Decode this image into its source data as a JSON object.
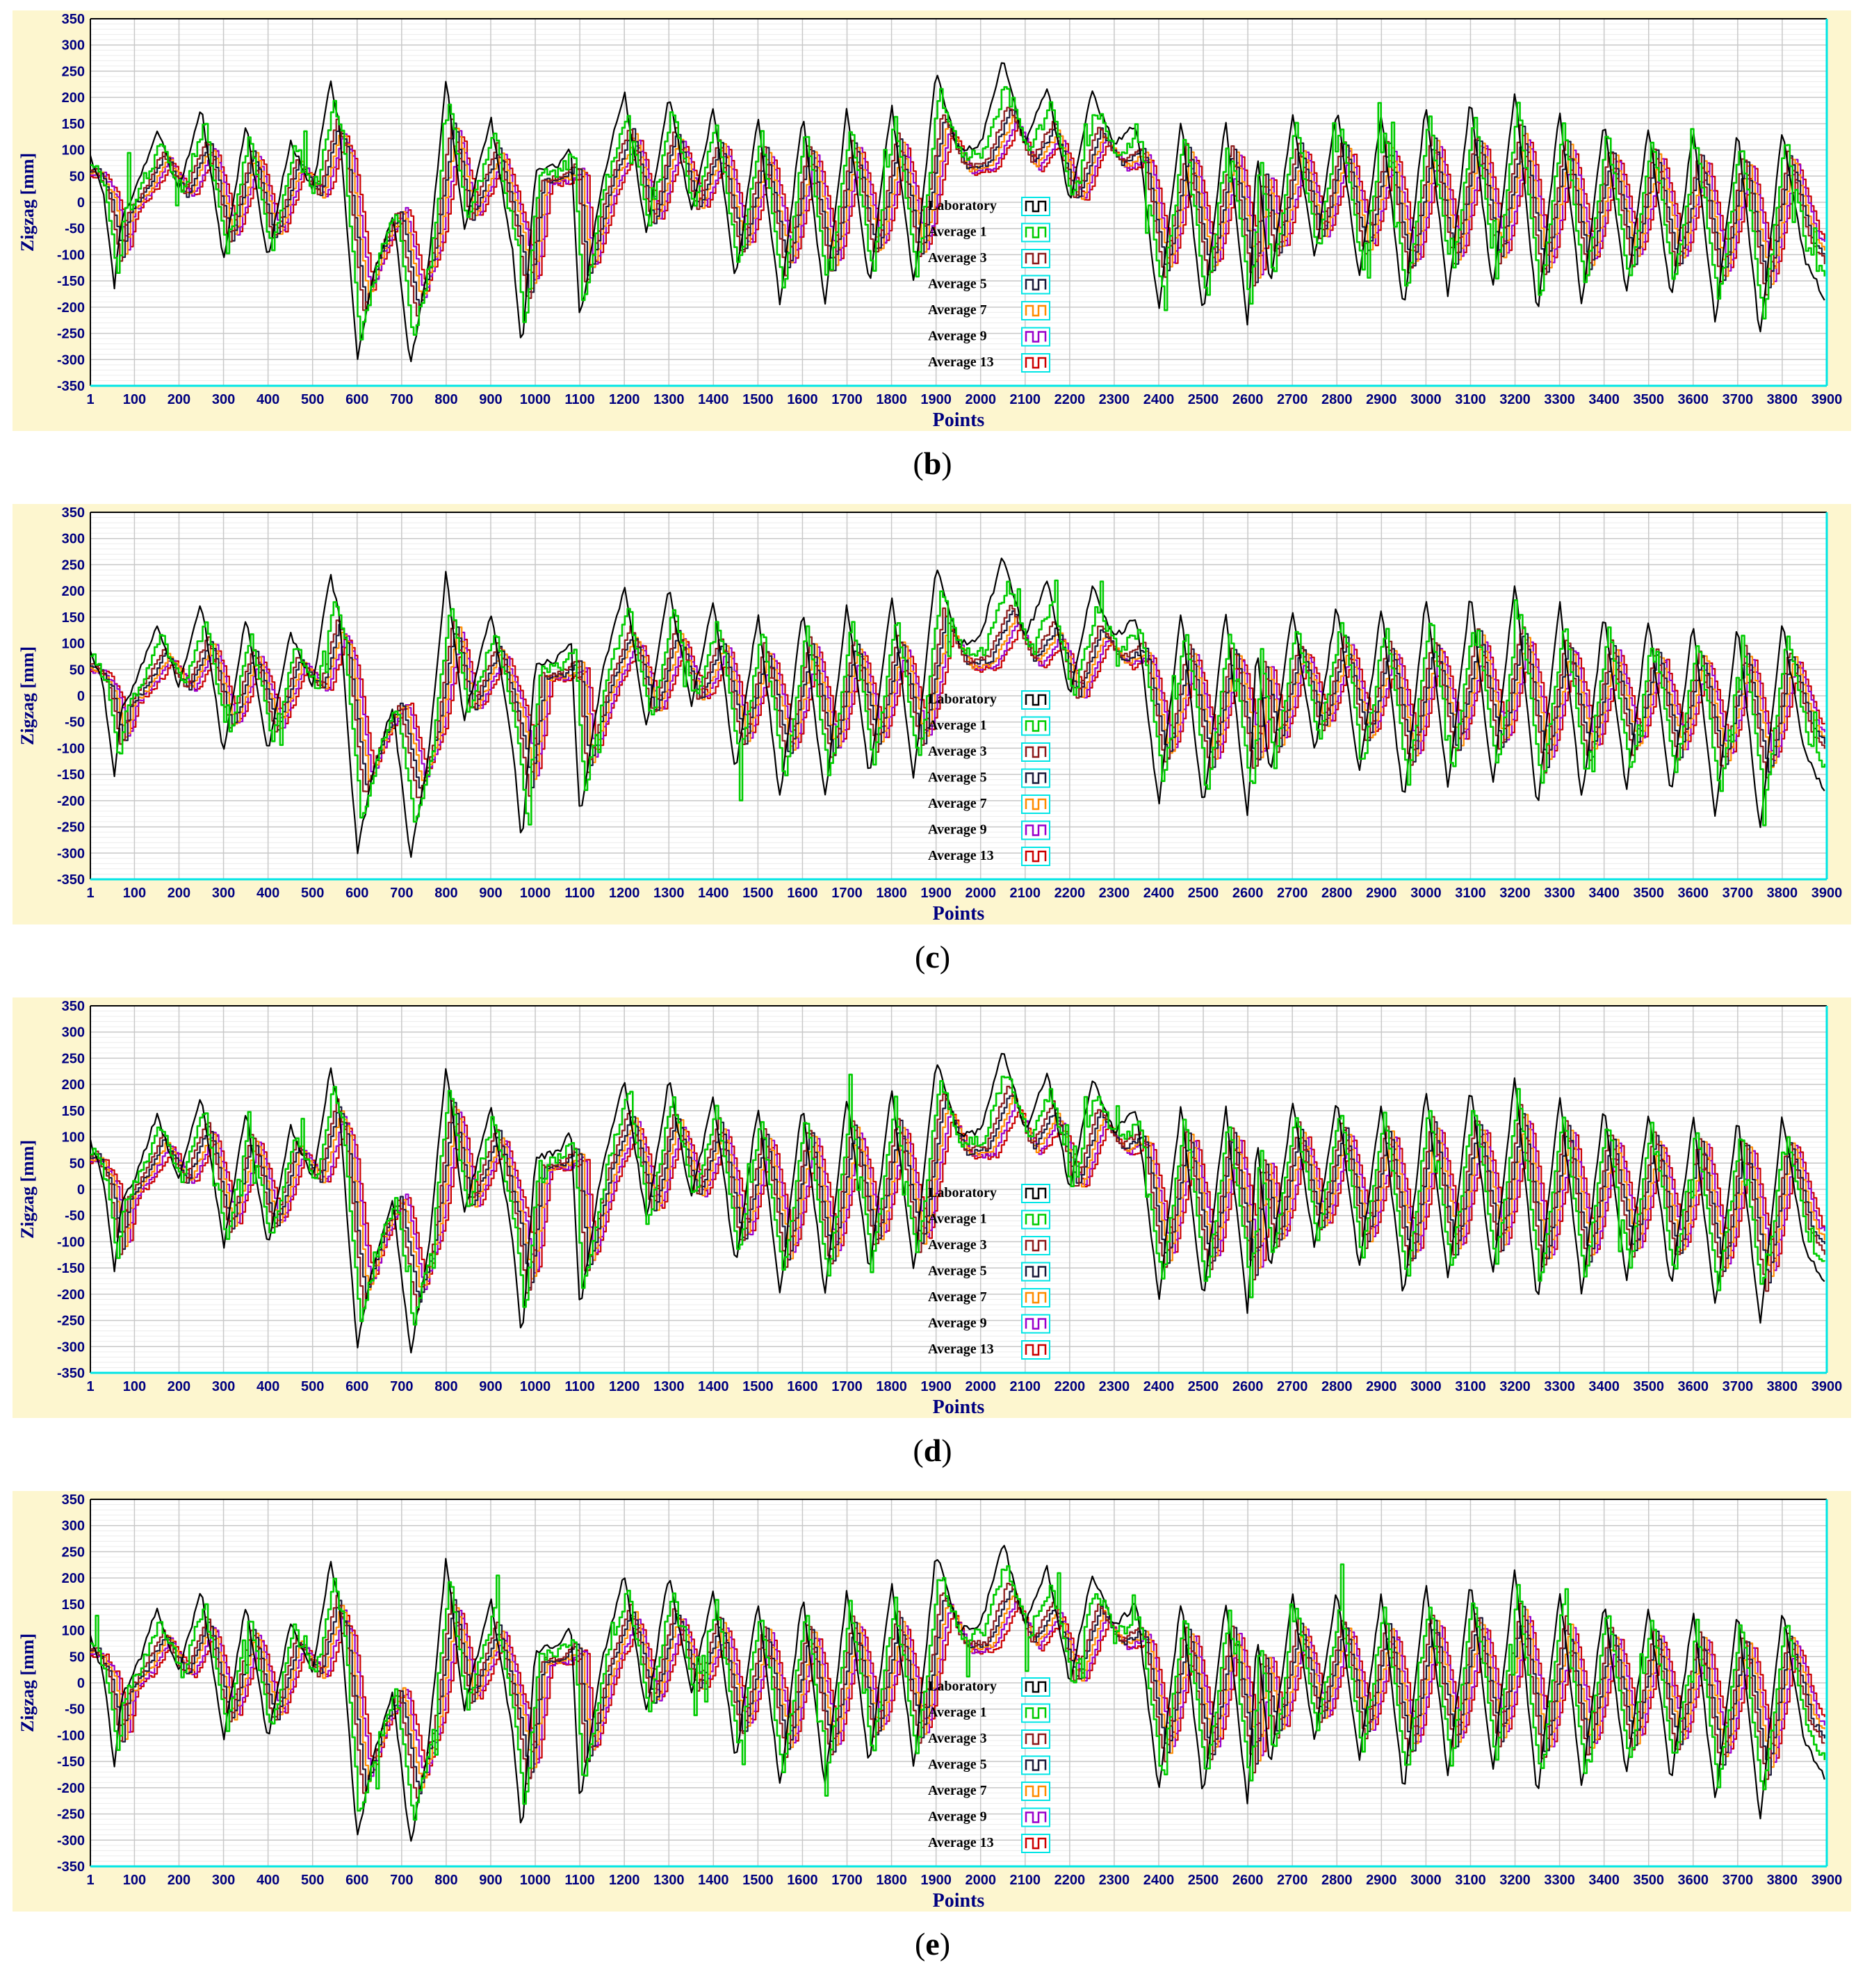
{
  "colors": {
    "frame_bg": "#fdf6cf",
    "plot_bg": "#ffffff",
    "grid": "#c8c8c8",
    "axis_text": "#000080",
    "cyan_axis": "#00e5e5"
  },
  "chart_data": [
    {
      "type": "line",
      "panel_label": "b",
      "xlabel": "Points",
      "ylabel": "Zigzag [mm]",
      "xlim": [
        1,
        3900
      ],
      "ylim": [
        -350,
        350
      ],
      "x_ticks": [
        "1",
        "100",
        "200",
        "300",
        "400",
        "500",
        "600",
        "700",
        "800",
        "900",
        "1000",
        "1100",
        "1200",
        "1300",
        "1400",
        "1500",
        "1600",
        "1700",
        "1800",
        "1900",
        "2000",
        "2100",
        "2200",
        "2300",
        "2400",
        "2500",
        "2600",
        "2700",
        "2800",
        "2900",
        "3000",
        "3100",
        "3200",
        "3300",
        "3400",
        "3500",
        "3600",
        "3700",
        "3800",
        "3900"
      ],
      "y_ticks": [
        "350",
        "300",
        "250",
        "200",
        "150",
        "100",
        "50",
        "0",
        "-50",
        "-100",
        "-150",
        "-200",
        "-250",
        "-300",
        "-350"
      ],
      "grid": true,
      "legend_position": "center",
      "series": [
        {
          "name": "Laboratory",
          "color": "#000000",
          "noise": 0.0,
          "amp": 1.0,
          "shift": 0
        },
        {
          "name": "Average 1",
          "color": "#00cc00",
          "noise": 0.55,
          "amp": 0.85,
          "shift": 2
        },
        {
          "name": "Average 3",
          "color": "#8b1a1a",
          "noise": 0.05,
          "amp": 0.7,
          "shift": 4
        },
        {
          "name": "Average 5",
          "color": "#1a1a3a",
          "noise": 0.04,
          "amp": 0.66,
          "shift": 6
        },
        {
          "name": "Average 7",
          "color": "#ff8c00",
          "noise": 0.04,
          "amp": 0.62,
          "shift": 8
        },
        {
          "name": "Average 9",
          "color": "#9900cc",
          "noise": 0.03,
          "amp": 0.58,
          "shift": 10
        },
        {
          "name": "Average 13",
          "color": "#cc0000",
          "noise": 0.03,
          "amp": 0.55,
          "shift": 12
        }
      ]
    },
    {
      "type": "line",
      "panel_label": "c",
      "xlabel": "Points",
      "ylabel": "Zigzag [mm]",
      "xlim": [
        1,
        3900
      ],
      "ylim": [
        -350,
        350
      ],
      "x_ticks": [
        "1",
        "100",
        "200",
        "300",
        "400",
        "500",
        "600",
        "700",
        "800",
        "900",
        "1000",
        "1100",
        "1200",
        "1300",
        "1400",
        "1500",
        "1600",
        "1700",
        "1800",
        "1900",
        "2000",
        "2100",
        "2200",
        "2300",
        "2400",
        "2500",
        "2600",
        "2700",
        "2800",
        "2900",
        "3000",
        "3100",
        "3200",
        "3300",
        "3400",
        "3500",
        "3600",
        "3700",
        "3800",
        "3900"
      ],
      "y_ticks": [
        "350",
        "300",
        "250",
        "200",
        "150",
        "100",
        "50",
        "0",
        "-50",
        "-100",
        "-150",
        "-200",
        "-250",
        "-300",
        "-350"
      ],
      "grid": true,
      "legend_position": "center",
      "series": [
        {
          "name": "Laboratory",
          "color": "#000000",
          "noise": 0.0,
          "amp": 1.0,
          "shift": 0
        },
        {
          "name": "Average 1",
          "color": "#00cc00",
          "noise": 0.4,
          "amp": 0.8,
          "shift": 3
        },
        {
          "name": "Average 3",
          "color": "#8b1a1a",
          "noise": 0.05,
          "amp": 0.65,
          "shift": 5
        },
        {
          "name": "Average 5",
          "color": "#1a1a3a",
          "noise": 0.04,
          "amp": 0.6,
          "shift": 7
        },
        {
          "name": "Average 7",
          "color": "#ff8c00",
          "noise": 0.04,
          "amp": 0.56,
          "shift": 9
        },
        {
          "name": "Average 9",
          "color": "#9900cc",
          "noise": 0.03,
          "amp": 0.52,
          "shift": 11
        },
        {
          "name": "Average 13",
          "color": "#cc0000",
          "noise": 0.03,
          "amp": 0.48,
          "shift": 13
        }
      ]
    },
    {
      "type": "line",
      "panel_label": "d",
      "xlabel": "Points",
      "ylabel": "Zigzag [mm]",
      "xlim": [
        1,
        3900
      ],
      "ylim": [
        -350,
        350
      ],
      "x_ticks": [
        "1",
        "100",
        "200",
        "300",
        "400",
        "500",
        "600",
        "700",
        "800",
        "900",
        "1000",
        "1100",
        "1200",
        "1300",
        "1400",
        "1500",
        "1600",
        "1700",
        "1800",
        "1900",
        "2000",
        "2100",
        "2200",
        "2300",
        "2400",
        "2500",
        "2600",
        "2700",
        "2800",
        "2900",
        "3000",
        "3100",
        "3200",
        "3300",
        "3400",
        "3500",
        "3600",
        "3700",
        "3800",
        "3900"
      ],
      "y_ticks": [
        "350",
        "300",
        "250",
        "200",
        "150",
        "100",
        "50",
        "0",
        "-50",
        "-100",
        "-150",
        "-200",
        "-250",
        "-300",
        "-350"
      ],
      "grid": true,
      "legend_position": "center",
      "series": [
        {
          "name": "Laboratory",
          "color": "#000000",
          "noise": 0.0,
          "amp": 1.0,
          "shift": 0
        },
        {
          "name": "Average 1",
          "color": "#00cc00",
          "noise": 0.45,
          "amp": 0.85,
          "shift": 2
        },
        {
          "name": "Average 3",
          "color": "#8b1a1a",
          "noise": 0.05,
          "amp": 0.75,
          "shift": 4
        },
        {
          "name": "Average 5",
          "color": "#1a1a3a",
          "noise": 0.04,
          "amp": 0.7,
          "shift": 6
        },
        {
          "name": "Average 7",
          "color": "#ff8c00",
          "noise": 0.04,
          "amp": 0.66,
          "shift": 8
        },
        {
          "name": "Average 9",
          "color": "#9900cc",
          "noise": 0.03,
          "amp": 0.62,
          "shift": 10
        },
        {
          "name": "Average 13",
          "color": "#cc0000",
          "noise": 0.03,
          "amp": 0.58,
          "shift": 12
        }
      ]
    },
    {
      "type": "line",
      "panel_label": "e",
      "xlabel": "Points",
      "ylabel": "Zigzag [mm]",
      "xlim": [
        1,
        3900
      ],
      "ylim": [
        -350,
        350
      ],
      "x_ticks": [
        "1",
        "100",
        "200",
        "300",
        "400",
        "500",
        "600",
        "700",
        "800",
        "900",
        "1000",
        "1100",
        "1200",
        "1300",
        "1400",
        "1500",
        "1600",
        "1700",
        "1800",
        "1900",
        "2000",
        "2100",
        "2200",
        "2300",
        "2400",
        "2500",
        "2600",
        "2700",
        "2800",
        "2900",
        "3000",
        "3100",
        "3200",
        "3300",
        "3400",
        "3500",
        "3600",
        "3700",
        "3800",
        "3900"
      ],
      "y_ticks": [
        "350",
        "300",
        "250",
        "200",
        "150",
        "100",
        "50",
        "0",
        "-50",
        "-100",
        "-150",
        "-200",
        "-250",
        "-300",
        "-350"
      ],
      "grid": true,
      "legend_position": "center",
      "series": [
        {
          "name": "Laboratory",
          "color": "#000000",
          "noise": 0.0,
          "amp": 1.0,
          "shift": 0
        },
        {
          "name": "Average 1",
          "color": "#00cc00",
          "noise": 0.5,
          "amp": 0.85,
          "shift": 2
        },
        {
          "name": "Average 3",
          "color": "#8b1a1a",
          "noise": 0.05,
          "amp": 0.72,
          "shift": 4
        },
        {
          "name": "Average 5",
          "color": "#1a1a3a",
          "noise": 0.04,
          "amp": 0.68,
          "shift": 6
        },
        {
          "name": "Average 7",
          "color": "#ff8c00",
          "noise": 0.04,
          "amp": 0.64,
          "shift": 8
        },
        {
          "name": "Average 9",
          "color": "#9900cc",
          "noise": 0.03,
          "amp": 0.6,
          "shift": 10
        },
        {
          "name": "Average 13",
          "color": "#cc0000",
          "noise": 0.03,
          "amp": 0.56,
          "shift": 12
        }
      ]
    }
  ],
  "laboratory_profile": {
    "x": [
      1,
      30,
      55,
      70,
      110,
      150,
      200,
      250,
      300,
      350,
      400,
      450,
      500,
      540,
      560,
      600,
      640,
      680,
      720,
      760,
      800,
      840,
      900,
      950,
      970,
      1000,
      1050,
      1080,
      1100,
      1150,
      1200,
      1250,
      1300,
      1350,
      1400,
      1450,
      1500,
      1550,
      1600,
      1650,
      1700,
      1750,
      1800,
      1850,
      1900,
      1950,
      2000,
      2050,
      2100,
      2150,
      2200,
      2250,
      2300,
      2350,
      2400,
      2450,
      2500,
      2550,
      2600,
      2620,
      2650,
      2700,
      2750,
      2800,
      2850,
      2900,
      2950,
      3000,
      3050,
      3100,
      3150,
      3200,
      3250,
      3300,
      3350,
      3400,
      3450,
      3500,
      3550,
      3600,
      3650,
      3700,
      3750,
      3800,
      3850,
      3900
    ],
    "y": [
      90,
      20,
      -160,
      -30,
      40,
      140,
      20,
      180,
      -110,
      150,
      -110,
      120,
      20,
      230,
      150,
      -300,
      -130,
      -20,
      -310,
      -120,
      240,
      -50,
      160,
      -100,
      -290,
      60,
      70,
      110,
      -230,
      40,
      210,
      -60,
      210,
      -20,
      180,
      -150,
      160,
      -200,
      170,
      -200,
      180,
      -160,
      190,
      -160,
      250,
      100,
      110,
      270,
      110,
      220,
      0,
      210,
      110,
      150,
      -210,
      160,
      -220,
      160,
      -240,
      100,
      -160,
      170,
      -110,
      180,
      -150,
      170,
      -210,
      190,
      -180,
      200,
      -170,
      220,
      -220,
      180,
      -200,
      160,
      -180,
      150,
      -190,
      140,
      -230,
      140,
      -260,
      140,
      -110,
      -190
    ]
  },
  "captions": [
    {
      "open": "(",
      "letter": "b",
      "close": ")"
    },
    {
      "open": "(",
      "letter": "c",
      "close": ")"
    },
    {
      "open": "(",
      "letter": "d",
      "close": ")"
    },
    {
      "open": "(",
      "letter": "e",
      "close": ")"
    }
  ]
}
